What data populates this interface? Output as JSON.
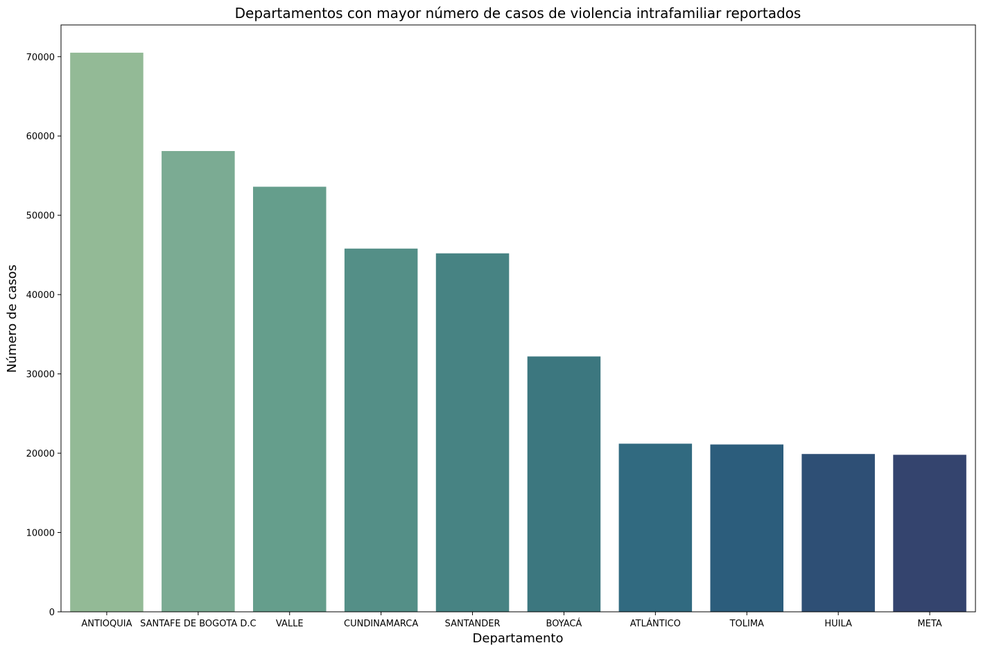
{
  "chart_data": {
    "type": "bar",
    "title": "Departamentos con mayor número de casos de violencia intrafamiliar reportados",
    "xlabel": "Departamento",
    "ylabel": "Número de casos",
    "categories": [
      "ANTIOQUIA",
      "SANTAFE DE BOGOTA D.C",
      "VALLE",
      "CUNDINAMARCA",
      "SANTANDER",
      "BOYACÁ",
      "ATLÁNTICO",
      "TOLIMA",
      "HUILA",
      "META"
    ],
    "values": [
      70500,
      58100,
      53600,
      45800,
      45200,
      32200,
      21200,
      21100,
      19900,
      19800
    ],
    "colors": [
      "#93ba96",
      "#7bab93",
      "#659e8c",
      "#548f87",
      "#478383",
      "#3c777f",
      "#316a80",
      "#2c5d7c",
      "#2e4f75",
      "#34446e"
    ],
    "ylim": [
      0,
      74000
    ],
    "yticks": [
      0,
      10000,
      20000,
      30000,
      40000,
      50000,
      60000,
      70000
    ],
    "grid": false,
    "legend": "none"
  }
}
